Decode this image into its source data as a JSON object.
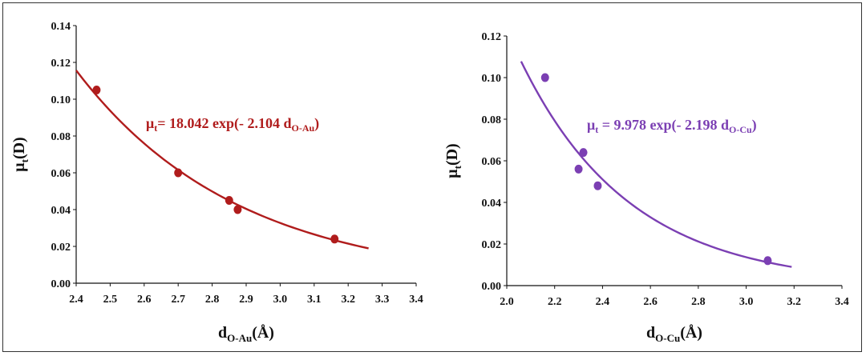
{
  "chart_data": [
    {
      "type": "scatter",
      "xlabel": {
        "main": "d",
        "sub": "O-Au",
        "unit": "(Å)"
      },
      "ylabel": {
        "main": "μ",
        "sub": "t",
        "unit": "(D)"
      },
      "xlim": [
        2.4,
        3.4
      ],
      "ylim": [
        0.0,
        0.14
      ],
      "xticks": [
        "2.4",
        "2.5",
        "2.6",
        "2.7",
        "2.8",
        "2.9",
        "3.0",
        "3.1",
        "3.2",
        "3.3",
        "3.4"
      ],
      "yticks": [
        "0.00",
        "0.02",
        "0.04",
        "0.06",
        "0.08",
        "0.10",
        "0.12",
        "0.14"
      ],
      "color": "#b01c1c",
      "points": [
        {
          "x": 2.46,
          "y": 0.105
        },
        {
          "x": 2.7,
          "y": 0.06
        },
        {
          "x": 2.85,
          "y": 0.045
        },
        {
          "x": 2.875,
          "y": 0.04
        },
        {
          "x": 3.16,
          "y": 0.024
        }
      ],
      "fit": {
        "a": 18.042,
        "b": 2.104,
        "x_range": [
          2.4,
          3.26
        ]
      },
      "equation": {
        "lhs": "μ",
        "lhs_sub": "t",
        "rhs": "= 18.042 exp(- 2.104 d",
        "rhs_sub": "O-Au",
        "close": ")"
      }
    },
    {
      "type": "scatter",
      "xlabel": {
        "main": "d",
        "sub": "O-Cu",
        "unit": "(Å)"
      },
      "ylabel": {
        "main": "μ",
        "sub": "t",
        "unit": "(D)"
      },
      "xlim": [
        2.0,
        3.4
      ],
      "ylim": [
        0.0,
        0.12
      ],
      "xticks": [
        "2.0",
        "2.2",
        "2.4",
        "2.6",
        "2.8",
        "3.0",
        "3.2",
        "3.4"
      ],
      "yticks": [
        "0.00",
        "0.02",
        "0.04",
        "0.06",
        "0.08",
        "0.10",
        "0.12"
      ],
      "color": "#7b3fb3",
      "points": [
        {
          "x": 2.16,
          "y": 0.1
        },
        {
          "x": 2.3,
          "y": 0.056
        },
        {
          "x": 2.32,
          "y": 0.064
        },
        {
          "x": 2.38,
          "y": 0.048
        },
        {
          "x": 3.09,
          "y": 0.012
        }
      ],
      "fit": {
        "a": 9.978,
        "b": 2.198,
        "x_range": [
          2.06,
          3.19
        ]
      },
      "equation": {
        "lhs": "μ",
        "lhs_sub": "t",
        "rhs": " = 9.978 exp(- 2.198 d",
        "rhs_sub": "O-Cu",
        "close": ")"
      }
    }
  ]
}
